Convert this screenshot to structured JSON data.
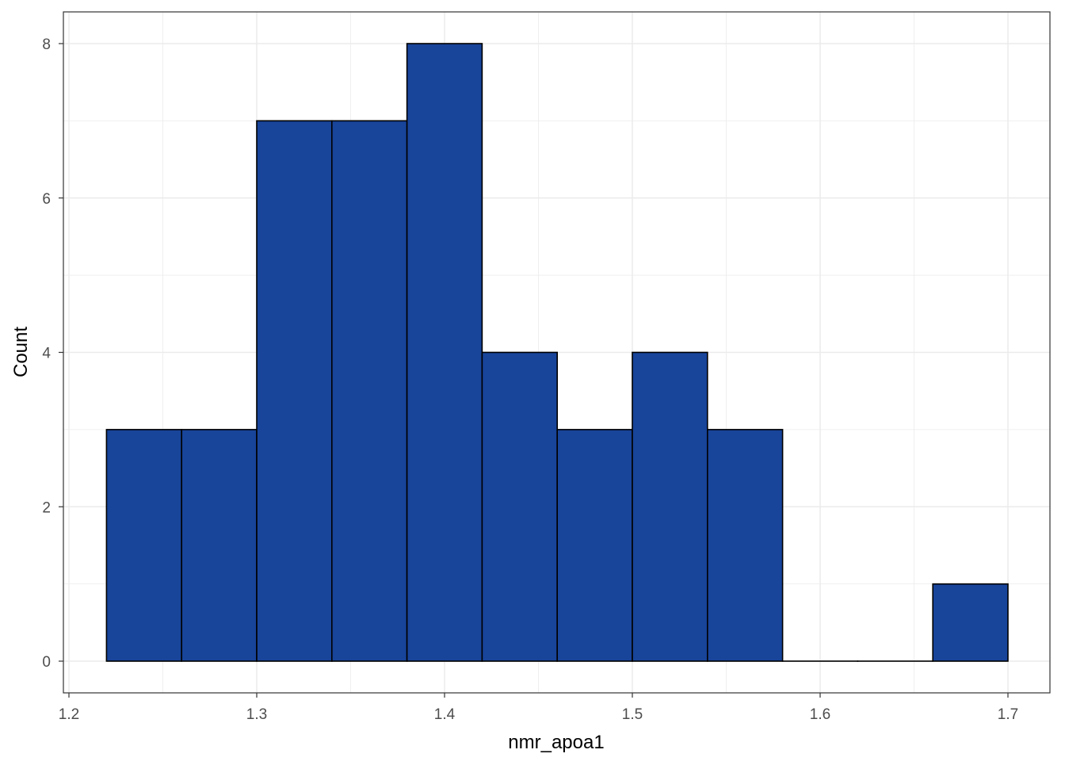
{
  "chart_data": {
    "type": "histogram",
    "xlabel": "nmr_apoa1",
    "ylabel": "Count",
    "bins": [
      {
        "x0": 1.22,
        "x1": 1.26,
        "count": 3
      },
      {
        "x0": 1.26,
        "x1": 1.3,
        "count": 3
      },
      {
        "x0": 1.3,
        "x1": 1.34,
        "count": 7
      },
      {
        "x0": 1.34,
        "x1": 1.38,
        "count": 7
      },
      {
        "x0": 1.38,
        "x1": 1.42,
        "count": 8
      },
      {
        "x0": 1.42,
        "x1": 1.46,
        "count": 4
      },
      {
        "x0": 1.46,
        "x1": 1.5,
        "count": 3
      },
      {
        "x0": 1.5,
        "x1": 1.54,
        "count": 4
      },
      {
        "x0": 1.54,
        "x1": 1.58,
        "count": 3
      },
      {
        "x0": 1.58,
        "x1": 1.62,
        "count": 0
      },
      {
        "x0": 1.62,
        "x1": 1.66,
        "count": 0
      },
      {
        "x0": 1.66,
        "x1": 1.7,
        "count": 1
      }
    ],
    "x_ticks": [
      "1.2",
      "1.3",
      "1.4",
      "1.5",
      "1.6",
      "1.7"
    ],
    "y_ticks": [
      "0",
      "2",
      "4",
      "6",
      "8"
    ],
    "xlim": [
      1.2,
      1.7
    ],
    "ylim": [
      0,
      8
    ],
    "grid": true,
    "bar_fill": "#18449a",
    "bar_stroke": "#000000",
    "panel_border": "#333333",
    "grid_color": "#ebebeb"
  }
}
